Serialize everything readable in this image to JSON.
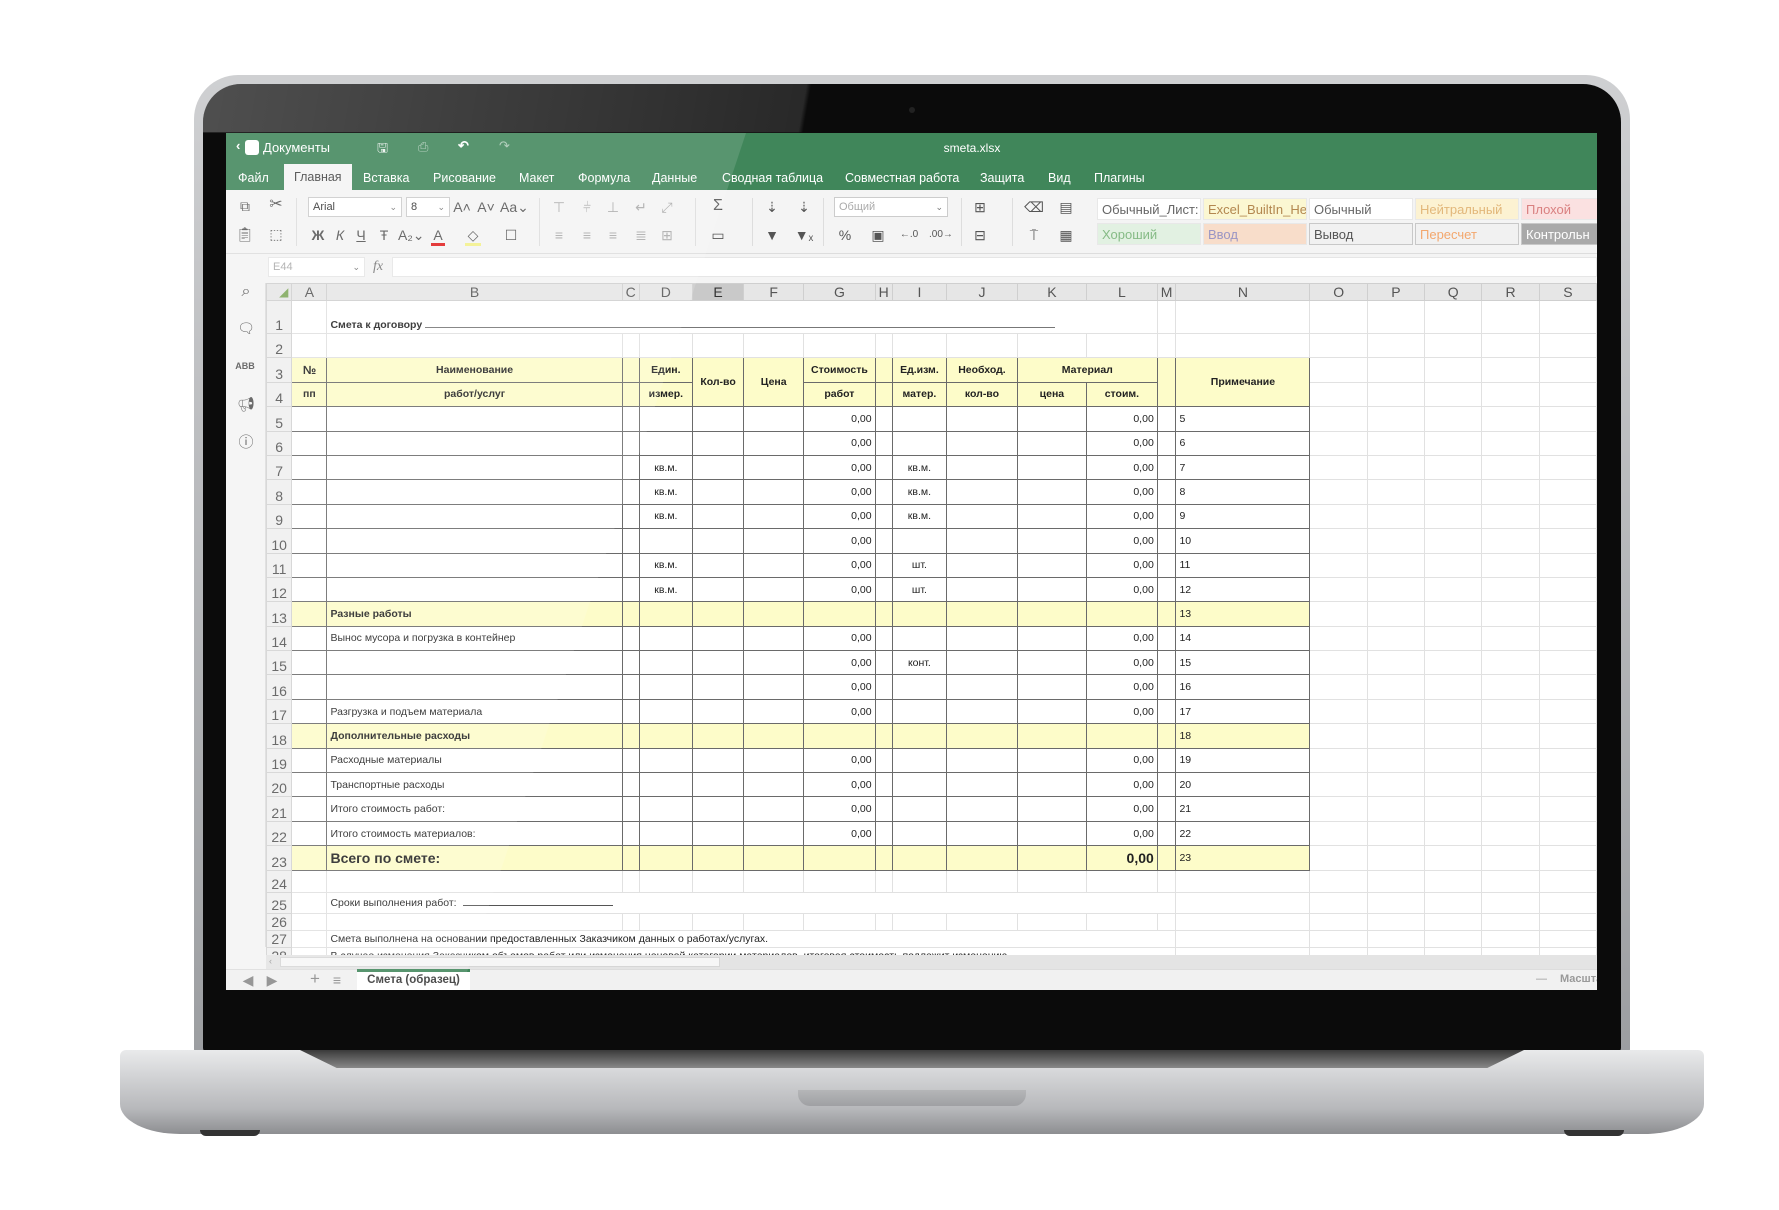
{
  "titlebar": {
    "back_label": "Документы",
    "filename": "smeta.xlsx"
  },
  "tabs": [
    "Файл",
    "Главная",
    "Вставка",
    "Рисование",
    "Макет",
    "Формула",
    "Данные",
    "Сводная таблица",
    "Совместная работа",
    "Защита",
    "Вид",
    "Плагины"
  ],
  "active_tab": "Главная",
  "toolbar": {
    "font_name": "Arial",
    "font_size": "8",
    "number_format": "Общий",
    "cell_styles": [
      {
        "label": "Обычный_Лист:",
        "color": "#666666",
        "bg": "#ffffff"
      },
      {
        "label": "Excel_BuiltIn_He",
        "color": "#b3874f",
        "bg": "#fbf7d2"
      },
      {
        "label": "Обычный",
        "color": "#666666",
        "bg": "#ffffff"
      },
      {
        "label": "Нейтральный",
        "color": "#e2b77a",
        "bg": "#fcf2d2"
      },
      {
        "label": "Плохой",
        "color": "#d98080",
        "bg": "#fbe1e1"
      },
      {
        "label": "Хороший",
        "color": "#86bb86",
        "bg": "#e2f1e2"
      },
      {
        "label": "Ввод",
        "color": "#9a95c4",
        "bg": "#f8ddca"
      },
      {
        "label": "Вывод",
        "color": "#555555",
        "bg": "#f1f1f1"
      },
      {
        "label": "Пересчет",
        "color": "#f3a76d",
        "bg": "#f1f1f1"
      },
      {
        "label": "Контрольн",
        "color": "#ffffff",
        "bg": "#a9a9a9"
      }
    ]
  },
  "formula_bar": {
    "cell_ref": "E44",
    "fx": "fx",
    "value": ""
  },
  "columns": [
    "A",
    "B",
    "C",
    "D",
    "E",
    "F",
    "G",
    "H",
    "I",
    "J",
    "K",
    "L",
    "M",
    "N",
    "O",
    "P",
    "Q",
    "R",
    "S"
  ],
  "selected_column": "E",
  "sheet": {
    "title": "Смета к договору",
    "header": {
      "num_top": "№",
      "num_bottom": "пп",
      "name_top": "Наименование",
      "name_bottom": "работ/услуг",
      "unit_top": "Един.",
      "unit_bottom": "измер.",
      "qty": "Кол-во",
      "price": "Цена",
      "cost_top": "Стоимость",
      "cost_bottom": "работ",
      "mat_unit_top": "Ед.изм.",
      "mat_unit_bottom": "матер.",
      "need_top": "Необход.",
      "need_bottom": "кол-во",
      "material": "Материал",
      "mat_price": "цена",
      "mat_cost": "стоим.",
      "note": "Примечание"
    },
    "rows": [
      {
        "n": "5",
        "g": "0,00",
        "l": "0,00"
      },
      {
        "n": "6",
        "g": "0,00",
        "l": "0,00"
      },
      {
        "n": "7",
        "d": "кв.м.",
        "g": "0,00",
        "i": "кв.м.",
        "l": "0,00"
      },
      {
        "n": "8",
        "d": "кв.м.",
        "g": "0,00",
        "i": "кв.м.",
        "l": "0,00"
      },
      {
        "n": "9",
        "d": "кв.м.",
        "g": "0,00",
        "i": "кв.м.",
        "l": "0,00"
      },
      {
        "n": "10",
        "g": "0,00",
        "l": "0,00"
      },
      {
        "n": "11",
        "d": "кв.м.",
        "g": "0,00",
        "i": "шт.",
        "l": "0,00"
      },
      {
        "n": "12",
        "d": "кв.м.",
        "g": "0,00",
        "i": "шт.",
        "l": "0,00"
      },
      {
        "n": "13",
        "b": "Разные работы",
        "kind": "section"
      },
      {
        "n": "14",
        "b": "Вынос мусора и погрузка в контейнер",
        "g": "0,00",
        "l": "0,00"
      },
      {
        "n": "15",
        "g": "0,00",
        "i": "конт.",
        "l": "0,00"
      },
      {
        "n": "16",
        "g": "0,00",
        "l": "0,00"
      },
      {
        "n": "17",
        "b": "Разгрузка и подъем материала",
        "g": "0,00",
        "l": "0,00"
      },
      {
        "n": "18",
        "b": "Дополнительные расходы",
        "kind": "section"
      },
      {
        "n": "19",
        "b": "Расходные материалы",
        "g": "0,00",
        "l": "0,00"
      },
      {
        "n": "20",
        "b": "Транспортные расходы",
        "g": "0,00",
        "l": "0,00"
      },
      {
        "n": "21",
        "b": "Итого стоимость работ:",
        "g": "0,00",
        "l": "0,00"
      },
      {
        "n": "22",
        "b": "Итого стоимость материалов:",
        "g": "0,00",
        "l": "0,00"
      },
      {
        "n": "23",
        "b": "Всего по смете:",
        "l": "0,00",
        "kind": "total"
      }
    ],
    "footer_rows": [
      {
        "n": "24"
      },
      {
        "n": "25",
        "b": "Сроки выполнения работ:",
        "underline": true
      },
      {
        "n": "26"
      },
      {
        "n": "27",
        "b": "Смета выполнена на основании предоставленных Заказчиком данных о работах/услугах."
      },
      {
        "n": "28",
        "b": "В случае изменения Заказчиком объемов работ или изменения ценовой категории материалов, итоговая стоимость подлежит изменению."
      }
    ]
  },
  "sheet_tabs": [
    "Смета (образец)"
  ],
  "zoom_label": "Масштаб",
  "colors": {
    "brand": "#40865a",
    "highlight": "#fdfcc9"
  }
}
